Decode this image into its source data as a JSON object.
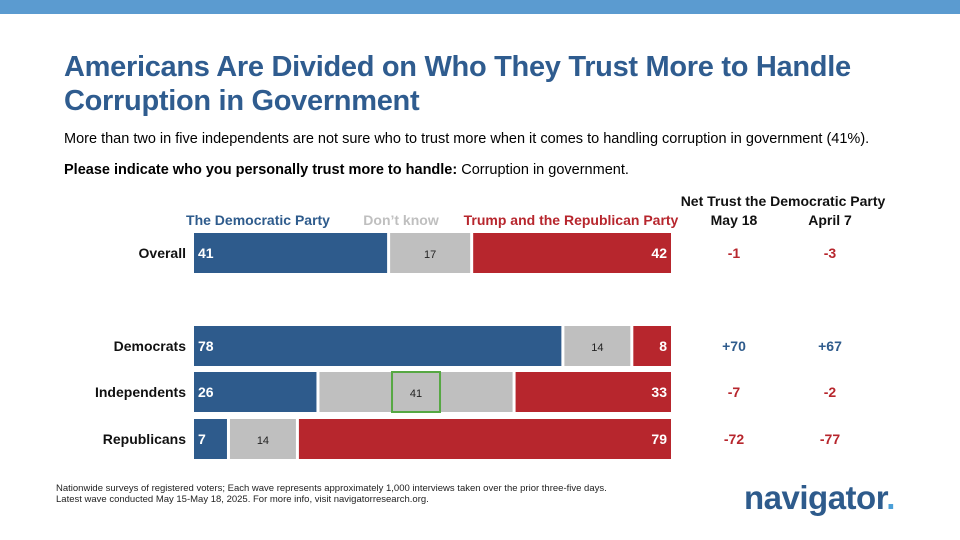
{
  "colors": {
    "topbar": "#5b9bd0",
    "title": "#2f5c8f",
    "dem": "#2e5b8c",
    "dk": "#bfbfbf",
    "rep": "#b7262d",
    "highlight": "#56a843",
    "logo": "#2e5b8c"
  },
  "title": "Americans Are Divided on Who They Trust More to Handle Corruption in Government",
  "subtitle": "More than two in five independents are not sure who to trust more when it comes to handling corruption in government (41%).",
  "question": {
    "prompt": "Please indicate who you personally trust more to handle:",
    "topic": "Corruption in government."
  },
  "chart_data": {
    "type": "bar",
    "orientation": "horizontal-stacked",
    "legend": [
      "The Democratic Party",
      "Don’t know",
      "Trump and the Republican Party"
    ],
    "categories": [
      "Overall",
      "Democrats",
      "Independents",
      "Republicans"
    ],
    "series": [
      {
        "name": "The Democratic Party",
        "values": [
          41,
          78,
          26,
          7
        ]
      },
      {
        "name": "Don’t know",
        "values": [
          17,
          14,
          41,
          14
        ]
      },
      {
        "name": "Trump and the Republican Party",
        "values": [
          42,
          8,
          33,
          79
        ]
      }
    ],
    "highlight": {
      "category": "Independents",
      "series": "Don’t know"
    },
    "net_trust": {
      "header": "Net Trust the Democratic Party",
      "columns": [
        "May 18",
        "April 7"
      ],
      "values": [
        [
          "-1",
          "-3"
        ],
        [
          "+70",
          "+67"
        ],
        [
          "-7",
          "-2"
        ],
        [
          "-72",
          "-77"
        ]
      ]
    }
  },
  "footnote": {
    "line1": "Nationwide surveys of registered voters; Each wave represents approximately 1,000 interviews taken over the prior three-five days.",
    "line2": "Latest wave conducted May 15-May 18, 2025. For more info, visit navigatorresearch.org."
  },
  "logo": {
    "text": "navigator",
    "dot": "."
  }
}
